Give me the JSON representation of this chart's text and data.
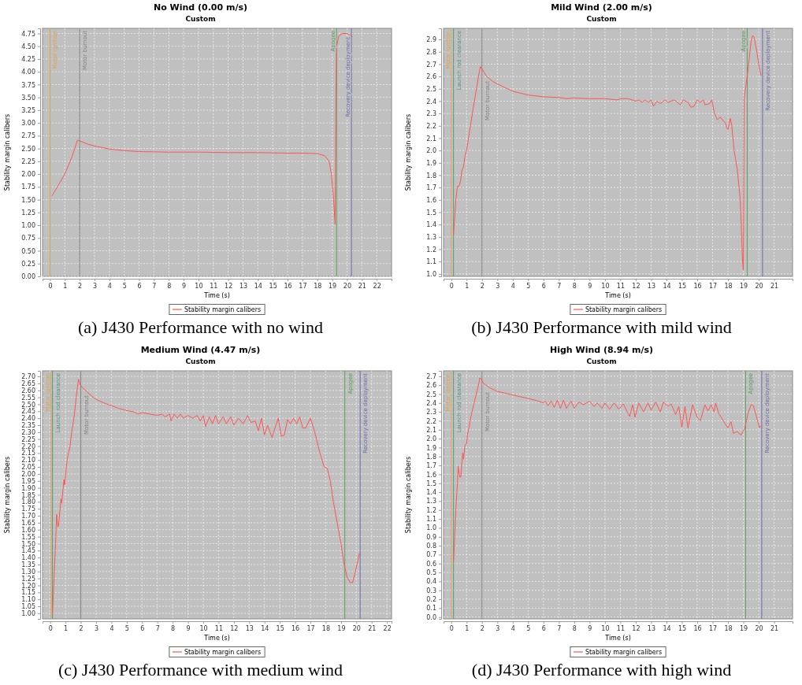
{
  "chart_data": [
    {
      "type": "line",
      "title": "No Wind (0.00 m/s)",
      "subtitle": "Custom",
      "xlabel": "Time (s)",
      "ylabel": "Stability margin calibers",
      "annotations": [
        "(a) J430 Performance with no wind"
      ],
      "legend": "bottom",
      "grid": true,
      "xlim": [
        -0.5,
        23
      ],
      "xticks": [
        0,
        1,
        2,
        3,
        4,
        5,
        6,
        7,
        8,
        9,
        10,
        11,
        12,
        13,
        14,
        15,
        16,
        17,
        18,
        19,
        20,
        21,
        22
      ],
      "ylim": [
        0,
        4.85
      ],
      "yticks": [
        {
          "value": 0,
          "label": "0.00"
        },
        0.25,
        {
          "value": 0.5,
          "label": "0.50"
        },
        0.75,
        {
          "value": 1,
          "label": "1.00"
        },
        1.25,
        {
          "value": 1.5,
          "label": "1.50"
        },
        1.75,
        {
          "value": 2,
          "label": "2.00"
        },
        2.25,
        {
          "value": 2.5,
          "label": "2.50"
        },
        2.75,
        {
          "value": 3,
          "label": "3.00"
        },
        3.25,
        {
          "value": 3.5,
          "label": "3.50"
        },
        3.75,
        {
          "value": 4,
          "label": "4.00"
        },
        4.25,
        {
          "value": 4.5,
          "label": "4.50"
        },
        4.75
      ],
      "ref_lines": [
        {
          "axis": "x",
          "value": 0,
          "label": "Motor ignition",
          "color": "#e0a040"
        },
        {
          "axis": "x",
          "value": 2,
          "label": "Motor burnout",
          "color": "#808080"
        },
        {
          "axis": "x",
          "value": 19.3,
          "label": "Apogee",
          "color": "#5aa05a"
        },
        {
          "axis": "x",
          "value": 20.3,
          "label": "Recovery device deployment",
          "color": "#6a6ab0"
        }
      ],
      "series": [
        {
          "name": "Stability margin calibers",
          "color": "#ff5555",
          "x": [
            0.15,
            0.5,
            1.0,
            1.5,
            1.85,
            2.0,
            2.5,
            3,
            4,
            5,
            6,
            8,
            10,
            12,
            14,
            16,
            17,
            18,
            18.5,
            18.8,
            18.95,
            19.1,
            19.2,
            19.25,
            19.3,
            19.45,
            19.7,
            20.0,
            20.2,
            20.35
          ],
          "values": [
            1.58,
            1.75,
            2.0,
            2.35,
            2.66,
            2.65,
            2.59,
            2.55,
            2.49,
            2.46,
            2.44,
            2.43,
            2.43,
            2.42,
            2.42,
            2.41,
            2.41,
            2.4,
            2.36,
            2.25,
            2.0,
            1.5,
            1.02,
            3.5,
            4.5,
            4.7,
            4.75,
            4.75,
            4.72,
            4.69
          ]
        }
      ]
    },
    {
      "type": "line",
      "title": "Mild Wind (2.00 m/s)",
      "subtitle": "Custom",
      "xlabel": "Time (s)",
      "ylabel": "Stability margin calibers",
      "annotations": [
        "(b) J430 Performance with mild wind"
      ],
      "legend": "bottom",
      "grid": true,
      "xlim": [
        -0.5,
        22.2
      ],
      "xticks": [
        0,
        1,
        2,
        3,
        4,
        5,
        6,
        7,
        8,
        9,
        10,
        11,
        12,
        13,
        14,
        15,
        16,
        17,
        18,
        19,
        20,
        21
      ],
      "ylim": [
        0.98,
        2.99
      ],
      "yticks": [
        {
          "value": 1,
          "label": "1.0"
        },
        1.1,
        1.2,
        1.3,
        1.4,
        1.5,
        1.6,
        1.7,
        1.8,
        1.9,
        {
          "value": 2,
          "label": "2.0"
        },
        2.1,
        2.2,
        2.3,
        2.4,
        2.5,
        2.6,
        2.7,
        2.8,
        2.9
      ],
      "ref_lines": [
        {
          "axis": "x",
          "value": 0,
          "label": "Motor ignition",
          "color": "#e0a040"
        },
        {
          "axis": "x",
          "value": 0.15,
          "label": "Launch rod clearance",
          "color": "#4a9a8a"
        },
        {
          "axis": "x",
          "value": 2,
          "label": "Motor burnout",
          "color": "#808080"
        },
        {
          "axis": "x",
          "value": 19.25,
          "label": "Apogee",
          "color": "#5aa05a"
        },
        {
          "axis": "x",
          "value": 20.25,
          "label": "Recovery device deployment",
          "color": "#6a6ab0"
        }
      ],
      "series": [
        {
          "name": "Stability margin calibers",
          "color": "#ff5555",
          "x": [
            0.15,
            0.3,
            0.4,
            0.5,
            0.6,
            0.7,
            0.8,
            0.9,
            1.0,
            1.2,
            1.4,
            1.6,
            1.8,
            1.9,
            2.0,
            2.3,
            2.7,
            3,
            3.5,
            4,
            4.5,
            5,
            6,
            7,
            7.5,
            8,
            9,
            10,
            10.8,
            11,
            11.5,
            12,
            12.2,
            12.4,
            12.6,
            12.8,
            13,
            13.15,
            13.4,
            13.6,
            13.9,
            14.1,
            14.5,
            14.9,
            15.1,
            15.4,
            15.6,
            15.8,
            16.0,
            16.2,
            16.4,
            16.5,
            16.8,
            16.95,
            17.0,
            17.1,
            17.3,
            17.5,
            17.7,
            17.85,
            17.9,
            18.0,
            18.15,
            18.25,
            18.4,
            18.6,
            18.8,
            18.95,
            19.0,
            19.05,
            19.3,
            19.5,
            19.6,
            19.7,
            19.9,
            20.05,
            20.15
          ],
          "values": [
            1.32,
            1.6,
            1.71,
            1.71,
            1.75,
            1.84,
            1.87,
            1.96,
            2.0,
            2.16,
            2.32,
            2.47,
            2.62,
            2.68,
            2.66,
            2.6,
            2.56,
            2.54,
            2.51,
            2.48,
            2.465,
            2.45,
            2.435,
            2.43,
            2.42,
            2.425,
            2.42,
            2.42,
            2.41,
            2.42,
            2.42,
            2.4,
            2.41,
            2.39,
            2.41,
            2.39,
            2.41,
            2.36,
            2.4,
            2.38,
            2.41,
            2.39,
            2.41,
            2.37,
            2.41,
            2.39,
            2.35,
            2.36,
            2.41,
            2.39,
            2.41,
            2.37,
            2.38,
            2.41,
            2.38,
            2.31,
            2.25,
            2.27,
            2.24,
            2.22,
            2.19,
            2.17,
            2.26,
            2.2,
            2.0,
            1.85,
            1.6,
            1.1,
            1.03,
            2.42,
            2.65,
            2.88,
            2.93,
            2.92,
            2.78,
            2.66,
            2.61
          ]
        }
      ]
    },
    {
      "type": "line",
      "title": "Medium Wind (4.47 m/s)",
      "subtitle": "Custom",
      "xlabel": "Time (s)",
      "ylabel": "Stability margin calibers",
      "annotations": [
        "(c) J430 Performance with medium wind"
      ],
      "legend": "bottom",
      "grid": true,
      "xlim": [
        -0.5,
        22.3
      ],
      "xticks": [
        0,
        1,
        2,
        3,
        4,
        5,
        6,
        7,
        8,
        9,
        10,
        11,
        12,
        13,
        14,
        15,
        16,
        17,
        18,
        19,
        20,
        21,
        22
      ],
      "ylim": [
        0.96,
        2.74
      ],
      "yticks": [
        {
          "value": 1,
          "label": "1.00"
        },
        1.05,
        {
          "value": 1.1,
          "label": "1.10"
        },
        1.15,
        {
          "value": 1.2,
          "label": "1.20"
        },
        1.25,
        {
          "value": 1.3,
          "label": "1.30"
        },
        1.35,
        {
          "value": 1.4,
          "label": "1.40"
        },
        1.45,
        {
          "value": 1.5,
          "label": "1.50"
        },
        1.55,
        {
          "value": 1.6,
          "label": "1.60"
        },
        1.65,
        {
          "value": 1.7,
          "label": "1.70"
        },
        1.75,
        {
          "value": 1.8,
          "label": "1.80"
        },
        1.85,
        {
          "value": 1.9,
          "label": "1.90"
        },
        1.95,
        {
          "value": 2,
          "label": "2.00"
        },
        2.05,
        {
          "value": 2.1,
          "label": "2.10"
        },
        2.15,
        {
          "value": 2.2,
          "label": "2.20"
        },
        2.25,
        {
          "value": 2.3,
          "label": "2.30"
        },
        2.35,
        {
          "value": 2.4,
          "label": "2.40"
        },
        2.45,
        {
          "value": 2.5,
          "label": "2.50"
        },
        2.55,
        {
          "value": 2.6,
          "label": "2.60"
        },
        2.65,
        {
          "value": 2.7,
          "label": "2.70"
        }
      ],
      "ref_lines": [
        {
          "axis": "x",
          "value": 0.05,
          "label": "Motor ignition",
          "color": "#e0a040"
        },
        {
          "axis": "x",
          "value": 0.15,
          "label": "Launch rod clearance",
          "color": "#4a9a8a"
        },
        {
          "axis": "x",
          "value": 2,
          "label": "Motor burnout",
          "color": "#808080"
        },
        {
          "axis": "x",
          "value": 19.25,
          "label": "Apogee",
          "color": "#5aa05a"
        },
        {
          "axis": "x",
          "value": 20.25,
          "label": "Recovery device deployment",
          "color": "#6a6ab0"
        }
      ],
      "series": [
        {
          "name": "Stability margin calibers",
          "color": "#ff5555",
          "x": [
            0.15,
            0.25,
            0.35,
            0.42,
            0.5,
            0.55,
            0.7,
            0.75,
            0.9,
            0.95,
            1.05,
            1.15,
            1.3,
            1.4,
            1.55,
            1.7,
            1.85,
            1.95,
            2.1,
            2.4,
            2.7,
            3,
            3.5,
            4,
            4.5,
            5,
            5.5,
            5.7,
            6,
            6.5,
            7,
            7.3,
            7.5,
            7.8,
            7.9,
            8.1,
            8.3,
            8.5,
            8.7,
            9,
            9.3,
            9.6,
            9.8,
            10,
            10.15,
            10.4,
            10.6,
            10.8,
            11,
            11.3,
            11.5,
            11.8,
            12,
            12.3,
            12.6,
            12.9,
            13.1,
            13.4,
            13.6,
            13.8,
            14,
            14.2,
            14.5,
            14.6,
            14.9,
            15.1,
            15.3,
            15.5,
            15.7,
            15.9,
            16.1,
            16.3,
            16.5,
            16.7,
            17.0,
            17.2,
            17.4,
            17.5,
            17.7,
            17.9,
            18.1,
            18.3,
            18.5,
            18.8,
            19.0,
            19.2,
            19.4,
            19.6,
            19.75,
            19.9,
            20.1,
            20.2
          ],
          "values": [
            1.0,
            1.25,
            1.5,
            1.71,
            1.62,
            1.63,
            1.82,
            1.79,
            1.96,
            1.92,
            2.05,
            2.13,
            2.2,
            2.3,
            2.4,
            2.55,
            2.68,
            2.64,
            2.62,
            2.59,
            2.56,
            2.535,
            2.51,
            2.49,
            2.47,
            2.455,
            2.445,
            2.43,
            2.44,
            2.43,
            2.42,
            2.43,
            2.41,
            2.43,
            2.38,
            2.43,
            2.4,
            2.43,
            2.4,
            2.42,
            2.4,
            2.42,
            2.38,
            2.42,
            2.34,
            2.41,
            2.36,
            2.42,
            2.36,
            2.41,
            2.36,
            2.41,
            2.35,
            2.4,
            2.36,
            2.42,
            2.37,
            2.38,
            2.31,
            2.4,
            2.28,
            2.35,
            2.26,
            2.3,
            2.4,
            2.27,
            2.28,
            2.39,
            2.36,
            2.4,
            2.36,
            2.41,
            2.33,
            2.33,
            2.4,
            2.33,
            2.25,
            2.2,
            2.12,
            2.05,
            2.04,
            1.95,
            1.8,
            1.62,
            1.5,
            1.35,
            1.26,
            1.22,
            1.22,
            1.28,
            1.38,
            1.43
          ]
        }
      ]
    },
    {
      "type": "line",
      "title": "High Wind (8.94 m/s)",
      "subtitle": "Custom",
      "xlabel": "Time (s)",
      "ylabel": "Stability margin calibers",
      "annotations": [
        "(d) J430 Performance with high wind"
      ],
      "legend": "bottom",
      "grid": true,
      "xlim": [
        -0.5,
        22.2
      ],
      "xticks": [
        0,
        1,
        2,
        3,
        4,
        5,
        6,
        7,
        8,
        9,
        10,
        11,
        12,
        13,
        14,
        15,
        16,
        17,
        18,
        19,
        20,
        21
      ],
      "ylim": [
        -0.02,
        2.76
      ],
      "yticks": [
        {
          "value": 0,
          "label": "0.0"
        },
        0.1,
        0.2,
        0.3,
        0.4,
        0.5,
        0.6,
        0.7,
        0.8,
        0.9,
        {
          "value": 1,
          "label": "1.0"
        },
        1.1,
        1.2,
        1.3,
        1.4,
        1.5,
        1.6,
        1.7,
        1.8,
        1.9,
        {
          "value": 2,
          "label": "2.0"
        },
        2.1,
        2.2,
        2.3,
        2.4,
        2.5,
        2.6,
        2.7
      ],
      "ref_lines": [
        {
          "axis": "x",
          "value": 0,
          "label": "Motor ignition",
          "color": "#e0a040"
        },
        {
          "axis": "x",
          "value": 0.15,
          "label": "Launch rod clearance",
          "color": "#4a9a8a"
        },
        {
          "axis": "x",
          "value": 2,
          "label": "Motor burnout",
          "color": "#808080"
        },
        {
          "axis": "x",
          "value": 19.15,
          "label": "Apogee",
          "color": "#5aa05a"
        },
        {
          "axis": "x",
          "value": 20.2,
          "label": "Recovery device deployment",
          "color": "#6a6ab0"
        }
      ],
      "series": [
        {
          "name": "Stability margin calibers",
          "color": "#ff5555",
          "x": [
            0.15,
            0.2,
            0.3,
            0.4,
            0.45,
            0.55,
            0.62,
            0.7,
            0.75,
            0.8,
            0.9,
            1.0,
            1.05,
            1.15,
            1.25,
            1.35,
            1.45,
            1.6,
            1.8,
            1.85,
            1.95,
            2.1,
            2.5,
            3,
            3.5,
            4,
            4.5,
            5,
            5.5,
            6,
            6.1,
            6.3,
            6.5,
            6.7,
            6.9,
            7.1,
            7.3,
            7.5,
            7.8,
            8,
            8.3,
            8.6,
            9,
            9.3,
            9.5,
            9.8,
            10,
            10.3,
            10.6,
            10.9,
            11.2,
            11.5,
            11.6,
            11.8,
            11.95,
            12.2,
            12.5,
            12.8,
            13.0,
            13.3,
            13.6,
            13.8,
            14.1,
            14.3,
            14.6,
            14.8,
            15.0,
            15.2,
            15.4,
            15.7,
            16.0,
            16.2,
            16.5,
            16.7,
            16.9,
            17.1,
            17.2,
            17.4,
            17.6,
            17.8,
            18.0,
            18.2,
            18.35,
            18.6,
            18.85,
            19.1,
            19.3,
            19.5,
            19.65,
            19.85,
            20.05,
            20.1
          ],
          "values": [
            0.63,
            0.8,
            1.2,
            1.5,
            1.69,
            1.57,
            1.57,
            1.75,
            1.84,
            1.77,
            1.93,
            1.94,
            2.04,
            2.12,
            2.22,
            2.3,
            2.37,
            2.48,
            2.62,
            2.68,
            2.67,
            2.62,
            2.57,
            2.53,
            2.51,
            2.49,
            2.47,
            2.45,
            2.43,
            2.4,
            2.42,
            2.37,
            2.42,
            2.35,
            2.43,
            2.34,
            2.43,
            2.34,
            2.42,
            2.34,
            2.41,
            2.38,
            2.42,
            2.36,
            2.4,
            2.34,
            2.4,
            2.33,
            2.4,
            2.33,
            2.39,
            2.28,
            2.25,
            2.38,
            2.24,
            2.4,
            2.3,
            2.4,
            2.32,
            2.41,
            2.3,
            2.41,
            2.36,
            2.39,
            2.27,
            2.36,
            2.13,
            2.36,
            2.12,
            2.38,
            2.24,
            2.2,
            2.38,
            2.31,
            2.38,
            2.3,
            2.4,
            2.28,
            2.23,
            2.17,
            2.12,
            2.19,
            2.06,
            2.08,
            2.04,
            2.12,
            2.28,
            2.38,
            2.37,
            2.25,
            2.12,
            2.14
          ]
        }
      ]
    }
  ]
}
